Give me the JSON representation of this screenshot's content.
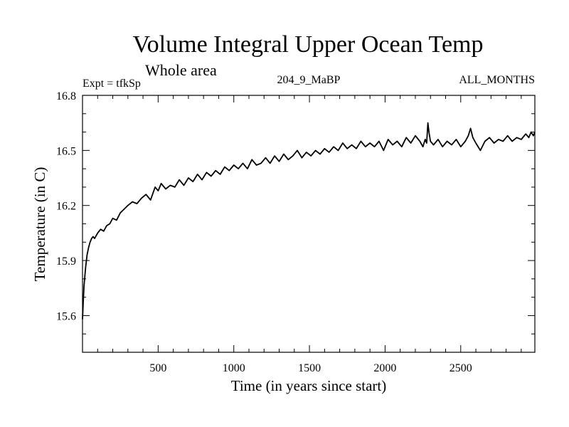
{
  "chart_data": {
    "type": "line",
    "title": "Volume Integral Upper Ocean Temp",
    "subtitle": "Whole area",
    "experiment_label": "Expt = tfkSp",
    "run_label": "204_9_MaBP",
    "months_label": "ALL_MONTHS",
    "xlabel": "Time (in years since start)",
    "ylabel": "Temperature (in C)",
    "xlim": [
      0,
      2990
    ],
    "ylim": [
      15.4,
      16.8
    ],
    "x_ticks": [
      500,
      1000,
      1500,
      2000,
      2500
    ],
    "x_tick_labels": [
      "500",
      "1000",
      "1500",
      "2000",
      "2500"
    ],
    "x_minor_step": 100,
    "y_ticks": [
      15.6,
      15.9,
      16.2,
      16.5,
      16.8
    ],
    "y_tick_labels": [
      "15.6",
      "15.9",
      "16.2",
      "16.5",
      "16.8"
    ],
    "y_minor_step": 0.1,
    "line_color": "#000000",
    "series": [
      {
        "name": "Temperature",
        "x": [
          0,
          5,
          10,
          20,
          30,
          40,
          50,
          60,
          70,
          80,
          100,
          120,
          140,
          160,
          180,
          200,
          225,
          250,
          275,
          300,
          330,
          360,
          390,
          420,
          450,
          480,
          500,
          520,
          550,
          580,
          610,
          640,
          670,
          700,
          730,
          760,
          790,
          820,
          850,
          880,
          910,
          940,
          970,
          1000,
          1030,
          1060,
          1090,
          1120,
          1150,
          1180,
          1210,
          1240,
          1270,
          1300,
          1330,
          1360,
          1390,
          1420,
          1450,
          1480,
          1510,
          1540,
          1570,
          1600,
          1630,
          1660,
          1690,
          1720,
          1750,
          1780,
          1810,
          1840,
          1870,
          1900,
          1930,
          1960,
          1990,
          2020,
          2050,
          2080,
          2110,
          2140,
          2170,
          2200,
          2230,
          2250,
          2265,
          2275,
          2283,
          2290,
          2300,
          2320,
          2350,
          2380,
          2410,
          2440,
          2470,
          2500,
          2530,
          2550,
          2565,
          2580,
          2600,
          2630,
          2660,
          2690,
          2720,
          2750,
          2780,
          2810,
          2840,
          2870,
          2900,
          2930,
          2950,
          2965,
          2980,
          2990
        ],
        "values": [
          15.58,
          15.68,
          15.76,
          15.86,
          15.93,
          15.97,
          16.0,
          16.02,
          16.03,
          16.02,
          16.05,
          16.07,
          16.06,
          16.09,
          16.1,
          16.13,
          16.12,
          16.16,
          16.18,
          16.2,
          16.22,
          16.21,
          16.24,
          16.26,
          16.23,
          16.3,
          16.28,
          16.32,
          16.29,
          16.31,
          16.3,
          16.34,
          16.31,
          16.35,
          16.33,
          16.37,
          16.34,
          16.38,
          16.36,
          16.39,
          16.37,
          16.41,
          16.39,
          16.42,
          16.4,
          16.43,
          16.4,
          16.45,
          16.42,
          16.43,
          16.46,
          16.43,
          16.47,
          16.44,
          16.48,
          16.45,
          16.47,
          16.5,
          16.46,
          16.49,
          16.47,
          16.5,
          16.48,
          16.51,
          16.49,
          16.52,
          16.5,
          16.54,
          16.51,
          16.53,
          16.51,
          16.55,
          16.52,
          16.54,
          16.52,
          16.55,
          16.5,
          16.56,
          16.53,
          16.55,
          16.52,
          16.57,
          16.54,
          16.58,
          16.55,
          16.52,
          16.56,
          16.54,
          16.65,
          16.6,
          16.55,
          16.53,
          16.56,
          16.52,
          16.55,
          16.53,
          16.56,
          16.52,
          16.55,
          16.58,
          16.62,
          16.57,
          16.54,
          16.5,
          16.55,
          16.57,
          16.54,
          16.56,
          16.55,
          16.58,
          16.55,
          16.57,
          16.56,
          16.59,
          16.57,
          16.6,
          16.58,
          16.6
        ]
      }
    ]
  }
}
